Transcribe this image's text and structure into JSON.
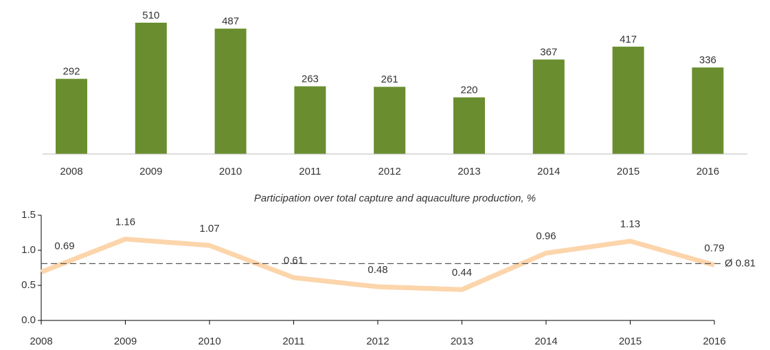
{
  "chart_data": [
    {
      "type": "bar",
      "categories": [
        "2008",
        "2009",
        "2010",
        "2011",
        "2012",
        "2013",
        "2014",
        "2015",
        "2016"
      ],
      "values": [
        292,
        510,
        487,
        263,
        261,
        220,
        367,
        417,
        336
      ],
      "color": "#6a8e2f",
      "ylim": [
        0,
        510
      ]
    },
    {
      "type": "line",
      "title": "Participation over total capture and aquaculture production, %",
      "categories": [
        "2008",
        "2009",
        "2010",
        "2011",
        "2012",
        "2013",
        "2014",
        "2015",
        "2016"
      ],
      "values": [
        0.69,
        1.16,
        1.07,
        0.61,
        0.48,
        0.44,
        0.96,
        1.13,
        0.79
      ],
      "color": "#fcd5ab",
      "ylim": [
        0,
        1.5
      ],
      "yticks": [
        {
          "value": 0,
          "label": "0.0"
        },
        0.5,
        {
          "value": 1,
          "label": "1.0"
        },
        1.5
      ],
      "average": {
        "value": 0.81,
        "label": "Ø 0.81"
      }
    }
  ]
}
